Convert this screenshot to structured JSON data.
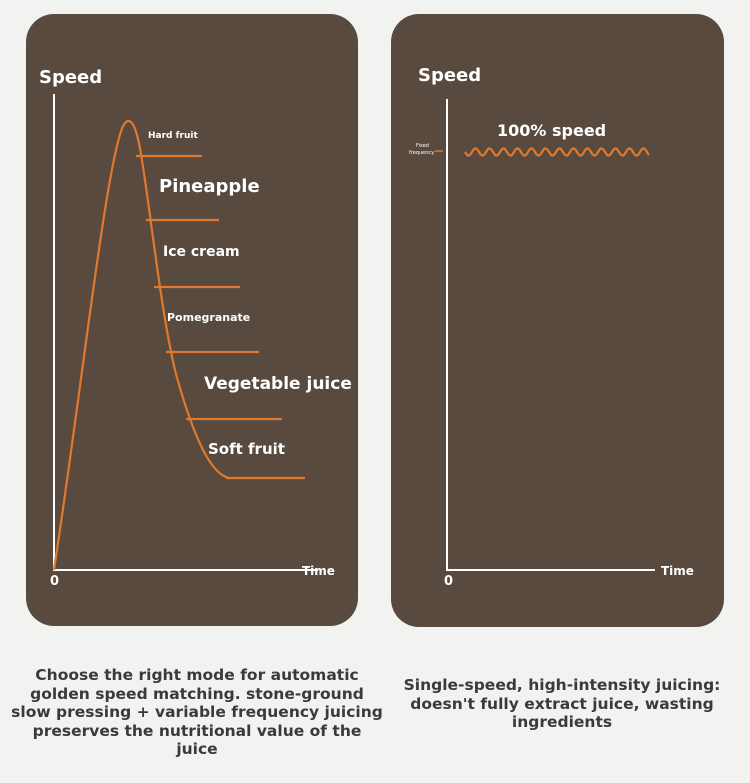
{
  "left_panel": {
    "y_axis_label": "Speed",
    "x_axis_label": "Time",
    "origin_label": "0",
    "modes": [
      {
        "label": "Hard fruit",
        "size": "small"
      },
      {
        "label": "Pineapple",
        "size": "large"
      },
      {
        "label": "Ice cream",
        "size": "medium"
      },
      {
        "label": "Pomegranate",
        "size": "small"
      },
      {
        "label": "Vegetable juice",
        "size": "large"
      },
      {
        "label": "Soft fruit",
        "size": "medium"
      }
    ]
  },
  "right_panel": {
    "y_axis_label": "Speed",
    "x_axis_label": "Time",
    "origin_label": "0",
    "speed_label": "100% speed",
    "fixed_line1": "Fixed",
    "fixed_line2": "frequency"
  },
  "captions": {
    "left": "Choose the right mode for automatic golden speed matching. stone-ground slow pressing + variable frequency juicing preserves the nutritional value of the juice",
    "right": "Single-speed, high-intensity juicing: doesn't fully extract juice, wasting ingredients"
  },
  "colors": {
    "panel_bg": "#584a3e",
    "curve": "#e0792d",
    "axis": "#ffffff",
    "page_bg": "#f2f2f1"
  }
}
